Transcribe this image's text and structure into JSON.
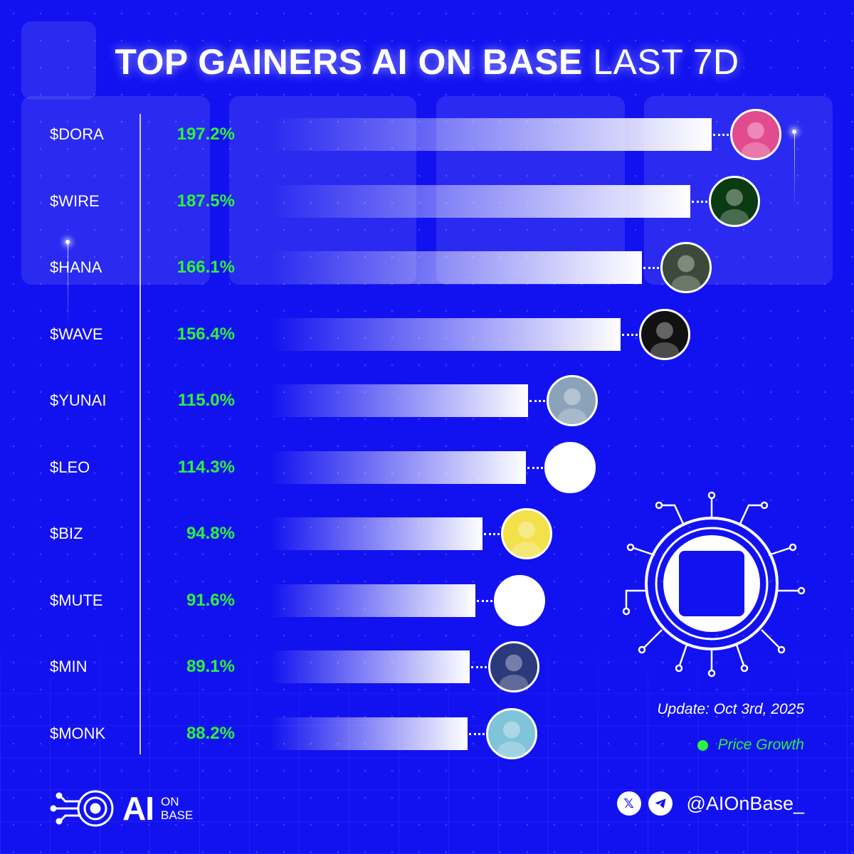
{
  "title": {
    "bold": "TOP GAINERS AI ON BASE",
    "light": "LAST 7D"
  },
  "chart_data": {
    "type": "bar",
    "orientation": "horizontal",
    "categories": [
      "$DORA",
      "$WIRE",
      "$HANA",
      "$WAVE",
      "$YUNAI",
      "$LEO",
      "$BIZ",
      "$MUTE",
      "$MIN",
      "$MONK"
    ],
    "values": [
      197.2,
      187.5,
      166.1,
      156.4,
      115.0,
      114.3,
      94.8,
      91.6,
      89.1,
      88.2
    ],
    "value_labels": [
      "197.2%",
      "187.5%",
      "166.1%",
      "156.4%",
      "115.0%",
      "114.3%",
      "94.8%",
      "91.6%",
      "89.1%",
      "88.2%"
    ],
    "legend": {
      "label": "Price Growth",
      "color": "#2cf33a",
      "position": "bottom-right"
    },
    "unit": "%"
  },
  "avatars": [
    {
      "icon": "dora-avatar-icon",
      "color": "#e24b8f"
    },
    {
      "icon": "wire-avatar-icon",
      "color": "#0b3b12"
    },
    {
      "icon": "hana-avatar-icon",
      "color": "#3b4a3a"
    },
    {
      "icon": "wave-avatar-icon",
      "color": "#111111"
    },
    {
      "icon": "yunai-avatar-icon",
      "color": "#8aa3b8"
    },
    {
      "icon": "leo-avatar-icon",
      "color": "#ffffff"
    },
    {
      "icon": "biz-avatar-icon",
      "color": "#f2e14a"
    },
    {
      "icon": "mute-avatar-icon",
      "color": "#ffffff"
    },
    {
      "icon": "min-avatar-icon",
      "color": "#2b3a7a"
    },
    {
      "icon": "monk-avatar-icon",
      "color": "#7fc4d8"
    }
  ],
  "update_text": "Update: Oct 3rd, 2025",
  "brand": {
    "ai": "AI",
    "on": "ON",
    "base": "BASE"
  },
  "social": {
    "x_icon": "x-icon",
    "telegram_icon": "telegram-icon",
    "handle": "@AIOnBase_"
  },
  "colors": {
    "background": "#1212f0",
    "value_text": "#2cf33a",
    "bar": "#ffffff"
  }
}
